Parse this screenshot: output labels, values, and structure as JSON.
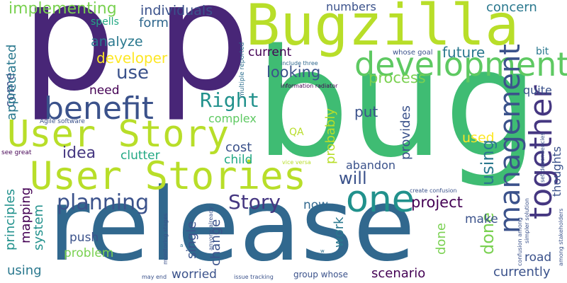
{
  "words": {
    "p1": "p",
    "p2": "p",
    "bug": "bug",
    "release": "release",
    "bugzilla": "Bugzilla",
    "user_story": "User Story",
    "user_stories": "User Stories",
    "development": "development",
    "benefit": "benefit",
    "one": "one",
    "management": "management",
    "together": "together",
    "right": "Right",
    "planning": "planning",
    "story": "Story",
    "project": "project",
    "implementing": "implementing",
    "spells": "spells",
    "individuals": "individuals",
    "numbers": "numbers",
    "concern": "concern",
    "analyze": "analyze",
    "form": "form",
    "developer": "developer",
    "future": "future",
    "current": "current",
    "use": "use",
    "looking": "looking",
    "process": "process",
    "need": "need",
    "come": "come",
    "appreciated": "appreciated",
    "quite": "quite",
    "complex": "complex",
    "put": "put",
    "probably": "probably",
    "provides": "provides",
    "cost": "cost",
    "used": "used",
    "idea": "idea",
    "clutter": "clutter",
    "child": "child",
    "abandon": "abandon",
    "will": "will",
    "qa": "QA",
    "work": "work",
    "now": "now",
    "using1": "using",
    "using2": "using",
    "done1": "done",
    "done2": "done",
    "make": "make",
    "road": "road",
    "mapping": "mapping",
    "system": "system",
    "principles": "principles",
    "single": "single",
    "change": "change",
    "push": "push",
    "problem": "problem",
    "worried": "worried",
    "scenario": "scenario",
    "currently": "currently",
    "group_whose": "group whose",
    "bit": "bit",
    "thoughts": "thoughts",
    "whose_goal": "whose goal",
    "agile_software": "Agile software",
    "see_great": "see great",
    "information_radiator": "information radiator",
    "include_three": "include three",
    "multiple_reported": "multiple reported",
    "vice_versa": "vice versa",
    "create_confusion": "create confusion",
    "set_dependencies": "set dependencies",
    "simpler_solution": "simpler solution",
    "confusion_among": "confusion among",
    "among_stakeholders": "among stakeholders",
    "anyone_already": "anyone already",
    "monitoring_stages": "monitoring stages",
    "may_end": "may end",
    "issue_tracking": "issue tracking",
    "tiny_a": "a",
    "tiny_w": "w"
  },
  "palette": {
    "purple": "#482677",
    "teal_blue": "#2d6f8e",
    "green": "#3fbc73",
    "lime": "#b8de29",
    "teal": "#21918c",
    "indigo": "#453781",
    "light_green": "#7ad151",
    "dark_purple": "#440154"
  }
}
